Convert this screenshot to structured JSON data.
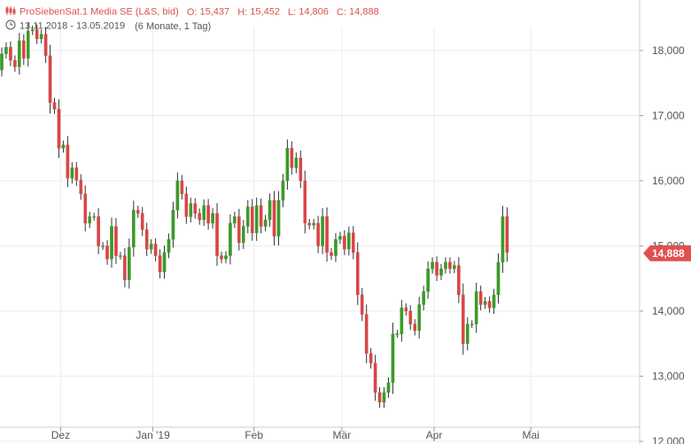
{
  "header": {
    "title": "ProSiebenSat.1 Media SE (L&S, bid)",
    "open_label": "O:",
    "open": "15,437",
    "high_label": "H:",
    "high": "15,452",
    "low_label": "L:",
    "low": "14,806",
    "close_label": "C:",
    "close": "14,888",
    "date_range": "13.11.2018 - 13.05.2019",
    "period": "(6 Monate, 1 Tag)"
  },
  "colors": {
    "up": "#3a9a28",
    "down": "#d94545",
    "badge": "#e05050",
    "grid": "#ececec",
    "axis_text": "#555555"
  },
  "chart_data": {
    "type": "candlestick",
    "title": "ProSiebenSat.1 Media SE (L&S, bid)",
    "xlabel": "",
    "ylabel": "",
    "ylim": [
      12000,
      18600
    ],
    "y_ticks": [
      "12,000",
      "13,000",
      "14,000",
      "15,000",
      "16,000",
      "17,000",
      "18,000"
    ],
    "y_tick_values": [
      12000,
      13000,
      14000,
      15000,
      16000,
      17000,
      18000
    ],
    "x_ticks": [
      {
        "label": "Dez",
        "date": "2018-12-01"
      },
      {
        "label": "Jan '19",
        "date": "2019-01-01"
      },
      {
        "label": "Feb",
        "date": "2019-02-01"
      },
      {
        "label": "Mär",
        "date": "2019-03-01"
      },
      {
        "label": "Apr",
        "date": "2019-04-01"
      },
      {
        "label": "Mai",
        "date": "2019-05-01"
      }
    ],
    "last_price_label": "14,888",
    "last_price": 14888,
    "grid": true,
    "close": [
      17950,
      18050,
      17850,
      17750,
      18150,
      17880,
      18300,
      18320,
      18180,
      18250,
      17920,
      17200,
      17100,
      16500,
      16550,
      16040,
      16200,
      16010,
      15800,
      15350,
      15450,
      15450,
      15000,
      15000,
      14800,
      15300,
      14850,
      14850,
      14480,
      14980,
      15550,
      15500,
      15250,
      14950,
      15030,
      14850,
      14600,
      14900,
      15100,
      15550,
      16000,
      15800,
      15450,
      15650,
      15500,
      15400,
      15620,
      15350,
      15500,
      14850,
      14800,
      14850,
      15350,
      15450,
      15050,
      15300,
      15600,
      15200,
      15620,
      15300,
      15400,
      15700,
      15150,
      15700,
      16000,
      16500,
      16200,
      16350,
      16000,
      15350,
      15320,
      15350,
      15000,
      15450,
      14900,
      14850,
      15100,
      15150,
      14950,
      15200,
      14900,
      14250,
      13950,
      13350,
      13200,
      12750,
      12600,
      12750,
      12900,
      13650,
      13650,
      14050,
      14000,
      13800,
      13700,
      14100,
      14300,
      14650,
      14750,
      14550,
      14650,
      14750,
      14650,
      14700,
      14250,
      13500,
      13800,
      13800,
      14300,
      14100,
      14150,
      14050,
      14250,
      14750,
      15450,
      14900
    ]
  }
}
